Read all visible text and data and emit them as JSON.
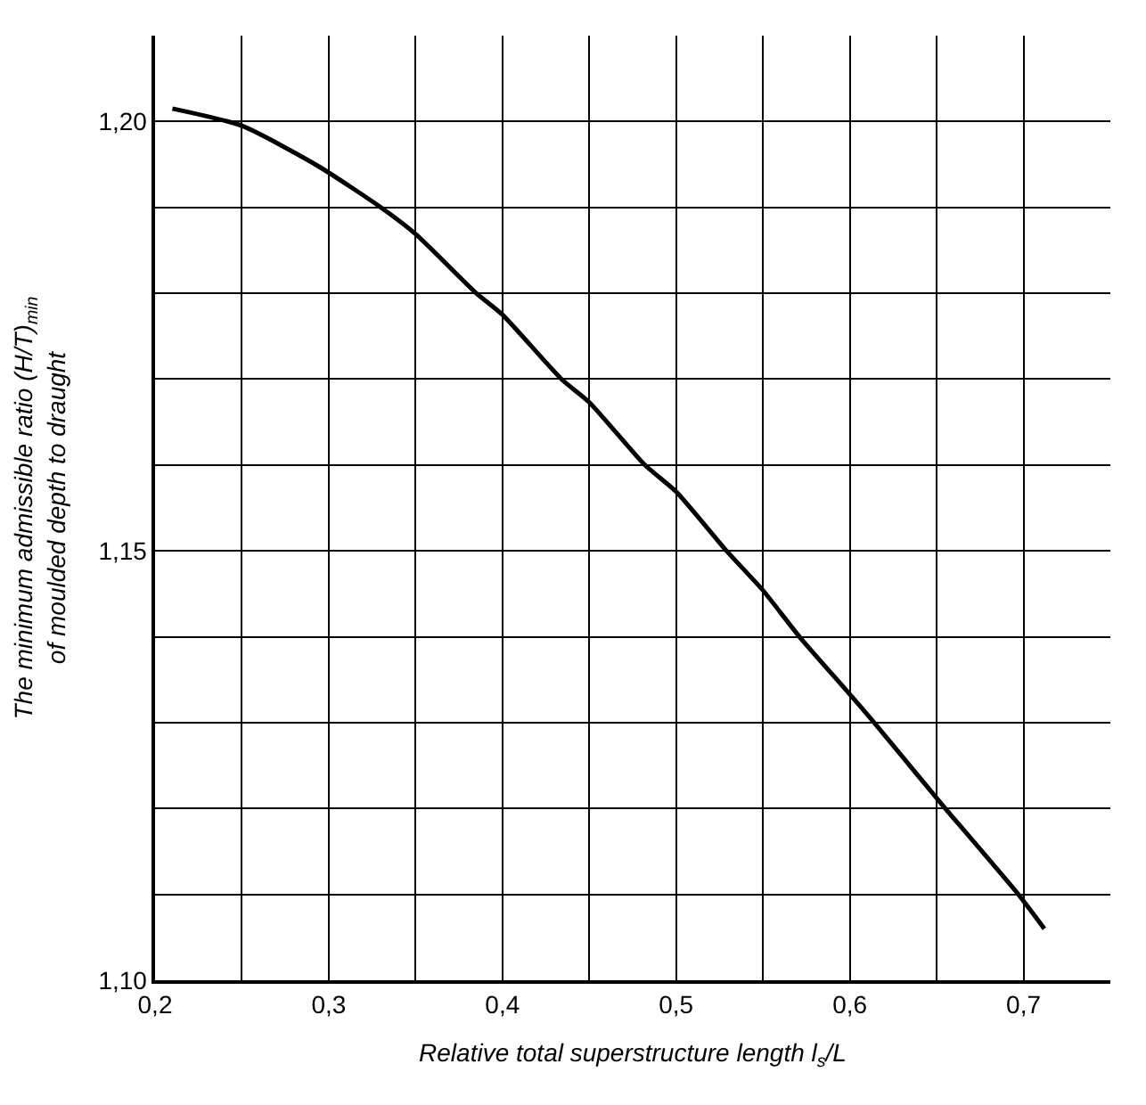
{
  "chart_data": {
    "type": "line",
    "xlabel": "Relative total superstructure length l$_{s}$/L",
    "ylabel": "The minimum admissible ratio (H/T)$_{min}$\nof moulded depth to draught",
    "x": [
      0.21,
      0.25,
      0.294,
      0.33,
      0.35,
      0.385,
      0.4,
      0.434,
      0.45,
      0.482,
      0.5,
      0.529,
      0.55,
      0.571,
      0.6,
      0.614,
      0.65,
      0.655,
      0.697,
      0.712
    ],
    "series": [
      {
        "color": "#000000",
        "values": [
          1.2015,
          1.1995,
          1.1948,
          1.19,
          1.1869,
          1.18,
          1.1775,
          1.17,
          1.1673,
          1.16,
          1.1569,
          1.15,
          1.1454,
          1.14,
          1.1333,
          1.13,
          1.1212,
          1.12,
          1.11,
          1.106
        ]
      }
    ],
    "xlim": [
      0.2,
      0.75
    ],
    "ylim": [
      1.1,
      1.21
    ],
    "xticks": [
      {
        "value": 0.2,
        "label": "0,2"
      },
      {
        "value": 0.25,
        "label": null
      },
      {
        "value": 0.3,
        "label": "0,3"
      },
      {
        "value": 0.35,
        "label": null
      },
      {
        "value": 0.4,
        "label": "0,4"
      },
      {
        "value": 0.45,
        "label": null
      },
      {
        "value": 0.5,
        "label": "0,5"
      },
      {
        "value": 0.55,
        "label": null
      },
      {
        "value": 0.6,
        "label": "0,6"
      },
      {
        "value": 0.65,
        "label": null
      },
      {
        "value": 0.7,
        "label": "0,7"
      }
    ],
    "yticks": [
      {
        "value": 1.1,
        "label": "1,10"
      },
      {
        "value": 1.11,
        "label": null
      },
      {
        "value": 1.12,
        "label": null
      },
      {
        "value": 1.13,
        "label": null
      },
      {
        "value": 1.14,
        "label": null
      },
      {
        "value": 1.15,
        "label": "1,15"
      },
      {
        "value": 1.16,
        "label": null
      },
      {
        "value": 1.17,
        "label": null
      },
      {
        "value": 1.18,
        "label": null
      },
      {
        "value": 1.19,
        "label": null
      },
      {
        "value": 1.2,
        "label": "1,20"
      }
    ],
    "grid": true,
    "marker": "none",
    "line_style": "solid"
  }
}
